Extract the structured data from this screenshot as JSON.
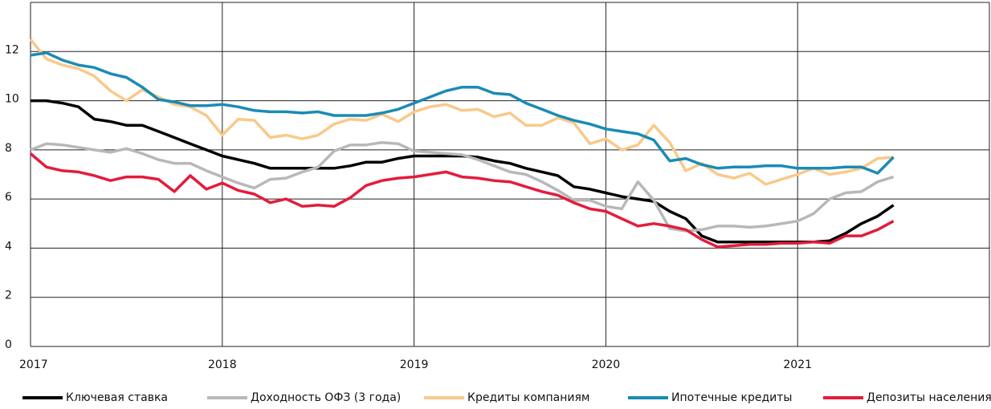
{
  "chart_data": {
    "type": "line",
    "x": [
      2017,
      2017.083,
      2017.167,
      2017.25,
      2017.333,
      2017.417,
      2017.5,
      2017.583,
      2017.667,
      2017.75,
      2017.833,
      2017.917,
      2018,
      2018.083,
      2018.167,
      2018.25,
      2018.333,
      2018.417,
      2018.5,
      2018.583,
      2018.667,
      2018.75,
      2018.833,
      2018.917,
      2019,
      2019.083,
      2019.167,
      2019.25,
      2019.333,
      2019.417,
      2019.5,
      2019.583,
      2019.667,
      2019.75,
      2019.833,
      2019.917,
      2020,
      2020.083,
      2020.167,
      2020.25,
      2020.333,
      2020.417,
      2020.5,
      2020.583,
      2020.667,
      2020.75,
      2020.833,
      2020.917,
      2021,
      2021.083,
      2021.167,
      2021.25,
      2021.333,
      2021.417,
      2021.5
    ],
    "series": [
      {
        "name": "Ключевая ставка",
        "color": "#000000",
        "values": [
          10,
          10,
          9.9,
          9.75,
          9.25,
          9.15,
          9.0,
          9.0,
          8.75,
          8.5,
          8.25,
          8.0,
          7.75,
          7.6,
          7.45,
          7.25,
          7.25,
          7.25,
          7.25,
          7.25,
          7.35,
          7.5,
          7.5,
          7.65,
          7.75,
          7.75,
          7.75,
          7.75,
          7.7,
          7.55,
          7.45,
          7.25,
          7.1,
          6.95,
          6.5,
          6.4,
          6.25,
          6.1,
          6.0,
          5.9,
          5.5,
          5.2,
          4.5,
          4.25,
          4.25,
          4.25,
          4.25,
          4.25,
          4.25,
          4.25,
          4.3,
          4.6,
          5.0,
          5.3,
          5.75
        ]
      },
      {
        "name": "Доходность ОФЗ (3 года)",
        "color": "#b8b8b8",
        "values": [
          8.0,
          8.25,
          8.2,
          8.1,
          8.0,
          7.9,
          8.05,
          7.85,
          7.6,
          7.45,
          7.45,
          7.15,
          6.9,
          6.65,
          6.45,
          6.8,
          6.85,
          7.1,
          7.3,
          7.95,
          8.2,
          8.2,
          8.3,
          8.25,
          7.95,
          7.9,
          7.85,
          7.8,
          7.6,
          7.35,
          7.1,
          7.0,
          6.7,
          6.35,
          5.95,
          5.95,
          5.7,
          5.6,
          6.7,
          5.95,
          4.8,
          4.7,
          4.75,
          4.9,
          4.9,
          4.85,
          4.9,
          5.0,
          5.1,
          5.4,
          6.0,
          6.25,
          6.3,
          6.7,
          6.9
        ]
      },
      {
        "name": "Кредиты компаниям",
        "color": "#f9c98a",
        "values": [
          12.5,
          11.7,
          11.45,
          11.3,
          11.0,
          10.4,
          10.0,
          10.45,
          10.15,
          9.85,
          9.75,
          9.4,
          8.6,
          9.25,
          9.2,
          8.5,
          8.6,
          8.45,
          8.6,
          9.05,
          9.25,
          9.2,
          9.45,
          9.15,
          9.55,
          9.75,
          9.85,
          9.6,
          9.65,
          9.35,
          9.5,
          9.0,
          9.0,
          9.3,
          9.1,
          8.25,
          8.45,
          8.0,
          8.2,
          9.0,
          8.3,
          7.15,
          7.45,
          7.0,
          6.85,
          7.05,
          6.6,
          6.8,
          7.0,
          7.25,
          7.0,
          7.1,
          7.25,
          7.65,
          7.7
        ]
      },
      {
        "name": "Ипотечные кредиты",
        "color": "#1a8bb5",
        "values": [
          11.85,
          11.95,
          11.65,
          11.45,
          11.35,
          11.1,
          10.95,
          10.55,
          10.05,
          9.95,
          9.8,
          9.8,
          9.85,
          9.75,
          9.6,
          9.55,
          9.55,
          9.5,
          9.55,
          9.4,
          9.4,
          9.4,
          9.5,
          9.65,
          9.9,
          10.15,
          10.4,
          10.55,
          10.55,
          10.3,
          10.25,
          9.9,
          9.65,
          9.4,
          9.2,
          9.05,
          8.85,
          8.75,
          8.65,
          8.4,
          7.55,
          7.65,
          7.4,
          7.25,
          7.3,
          7.3,
          7.35,
          7.35,
          7.25,
          7.25,
          7.25,
          7.3,
          7.3,
          7.05,
          7.7
        ]
      },
      {
        "name": "Депозиты населения",
        "color": "#e31c3c",
        "values": [
          7.85,
          7.3,
          7.15,
          7.1,
          6.95,
          6.75,
          6.9,
          6.9,
          6.8,
          6.3,
          6.95,
          6.4,
          6.65,
          6.35,
          6.2,
          5.85,
          6.0,
          5.7,
          5.75,
          5.7,
          6.05,
          6.55,
          6.75,
          6.85,
          6.9,
          7.0,
          7.1,
          6.9,
          6.85,
          6.75,
          6.7,
          6.5,
          6.3,
          6.15,
          5.85,
          5.6,
          5.5,
          5.2,
          4.9,
          5.0,
          4.9,
          4.75,
          4.35,
          4.05,
          4.1,
          4.15,
          4.15,
          4.2,
          4.2,
          4.25,
          4.2,
          4.5,
          4.5,
          4.75,
          5.1
        ]
      }
    ],
    "xlim": [
      2017,
      2022
    ],
    "xticks": [
      2017,
      2018,
      2019,
      2020,
      2021
    ],
    "ylim": [
      0,
      14
    ],
    "yticks": [
      0,
      2,
      4,
      6,
      8,
      10,
      12
    ],
    "grid": true,
    "legend": "bottom"
  }
}
